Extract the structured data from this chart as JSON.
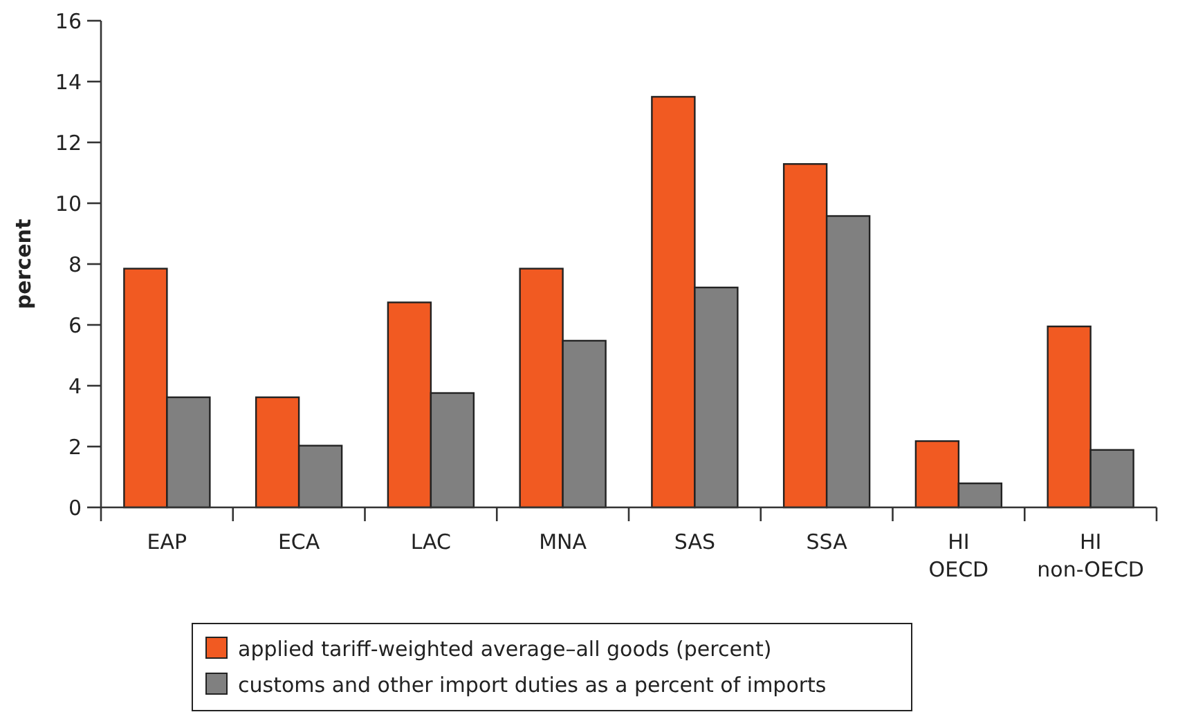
{
  "chart_data": {
    "type": "bar",
    "ylabel": "percent",
    "categories": [
      "EAP",
      "ECA",
      "LAC",
      "MNA",
      "SAS",
      "SSA",
      "HI OECD",
      "HI non-OECD"
    ],
    "series": [
      {
        "name": "applied tariff-weighted average–all goods (percent)",
        "color": "#f15a22",
        "values": [
          7.85,
          3.62,
          6.74,
          7.85,
          13.5,
          11.29,
          2.18,
          5.95
        ]
      },
      {
        "name": "customs and other import duties as a percent of imports",
        "color": "#808080",
        "values": [
          3.62,
          2.03,
          3.76,
          5.48,
          7.23,
          9.58,
          0.79,
          1.89
        ]
      }
    ],
    "ylim": [
      0,
      16
    ],
    "yticks": [
      0,
      2,
      4,
      6,
      8,
      10,
      12,
      14,
      16
    ],
    "grid": false,
    "legend": "bottom"
  }
}
